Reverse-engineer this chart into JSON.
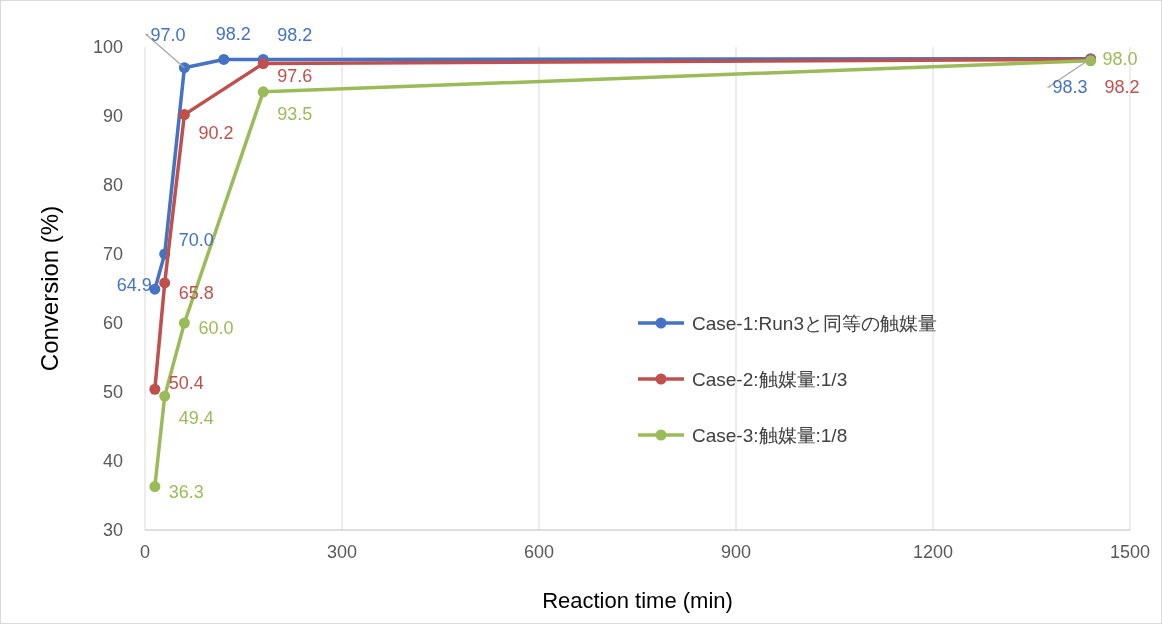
{
  "chart_data": {
    "type": "line",
    "xlabel": "Reaction time (min)",
    "ylabel": "Conversion (%)",
    "xlim": [
      0,
      1500
    ],
    "xticks": [
      0,
      300,
      600,
      900,
      1200,
      1500
    ],
    "ylim": [
      30,
      100
    ],
    "yticks": [
      30,
      40,
      50,
      60,
      70,
      80,
      90,
      100
    ],
    "grid": "x",
    "legend": "right",
    "marker": "circle",
    "series": [
      {
        "name": "Case-1:Run3と同等の触媒量",
        "color": "#4472c4",
        "x": [
          15,
          30,
          60,
          120,
          180,
          1440
        ],
        "values": [
          64.9,
          70.0,
          97.0,
          98.2,
          98.2,
          98.3
        ],
        "value_labels": [
          "64.9",
          "70.0",
          "97.0",
          "98.2",
          "98.2",
          "98.3"
        ]
      },
      {
        "name": "Case-2:触媒量:1/3",
        "color": "#c0504d",
        "x": [
          15,
          30,
          60,
          180,
          1440
        ],
        "values": [
          50.4,
          65.8,
          90.2,
          97.6,
          98.2
        ],
        "value_labels": [
          "50.4",
          "65.8",
          "90.2",
          "97.6",
          "98.2"
        ]
      },
      {
        "name": "Case-3:触媒量:1/8",
        "color": "#9bbb59",
        "x": [
          15,
          30,
          60,
          180,
          1440
        ],
        "values": [
          36.3,
          49.4,
          60.0,
          93.5,
          98.0
        ],
        "value_labels": [
          "36.3",
          "49.4",
          "60.0",
          "93.5",
          "98.0"
        ]
      }
    ]
  }
}
